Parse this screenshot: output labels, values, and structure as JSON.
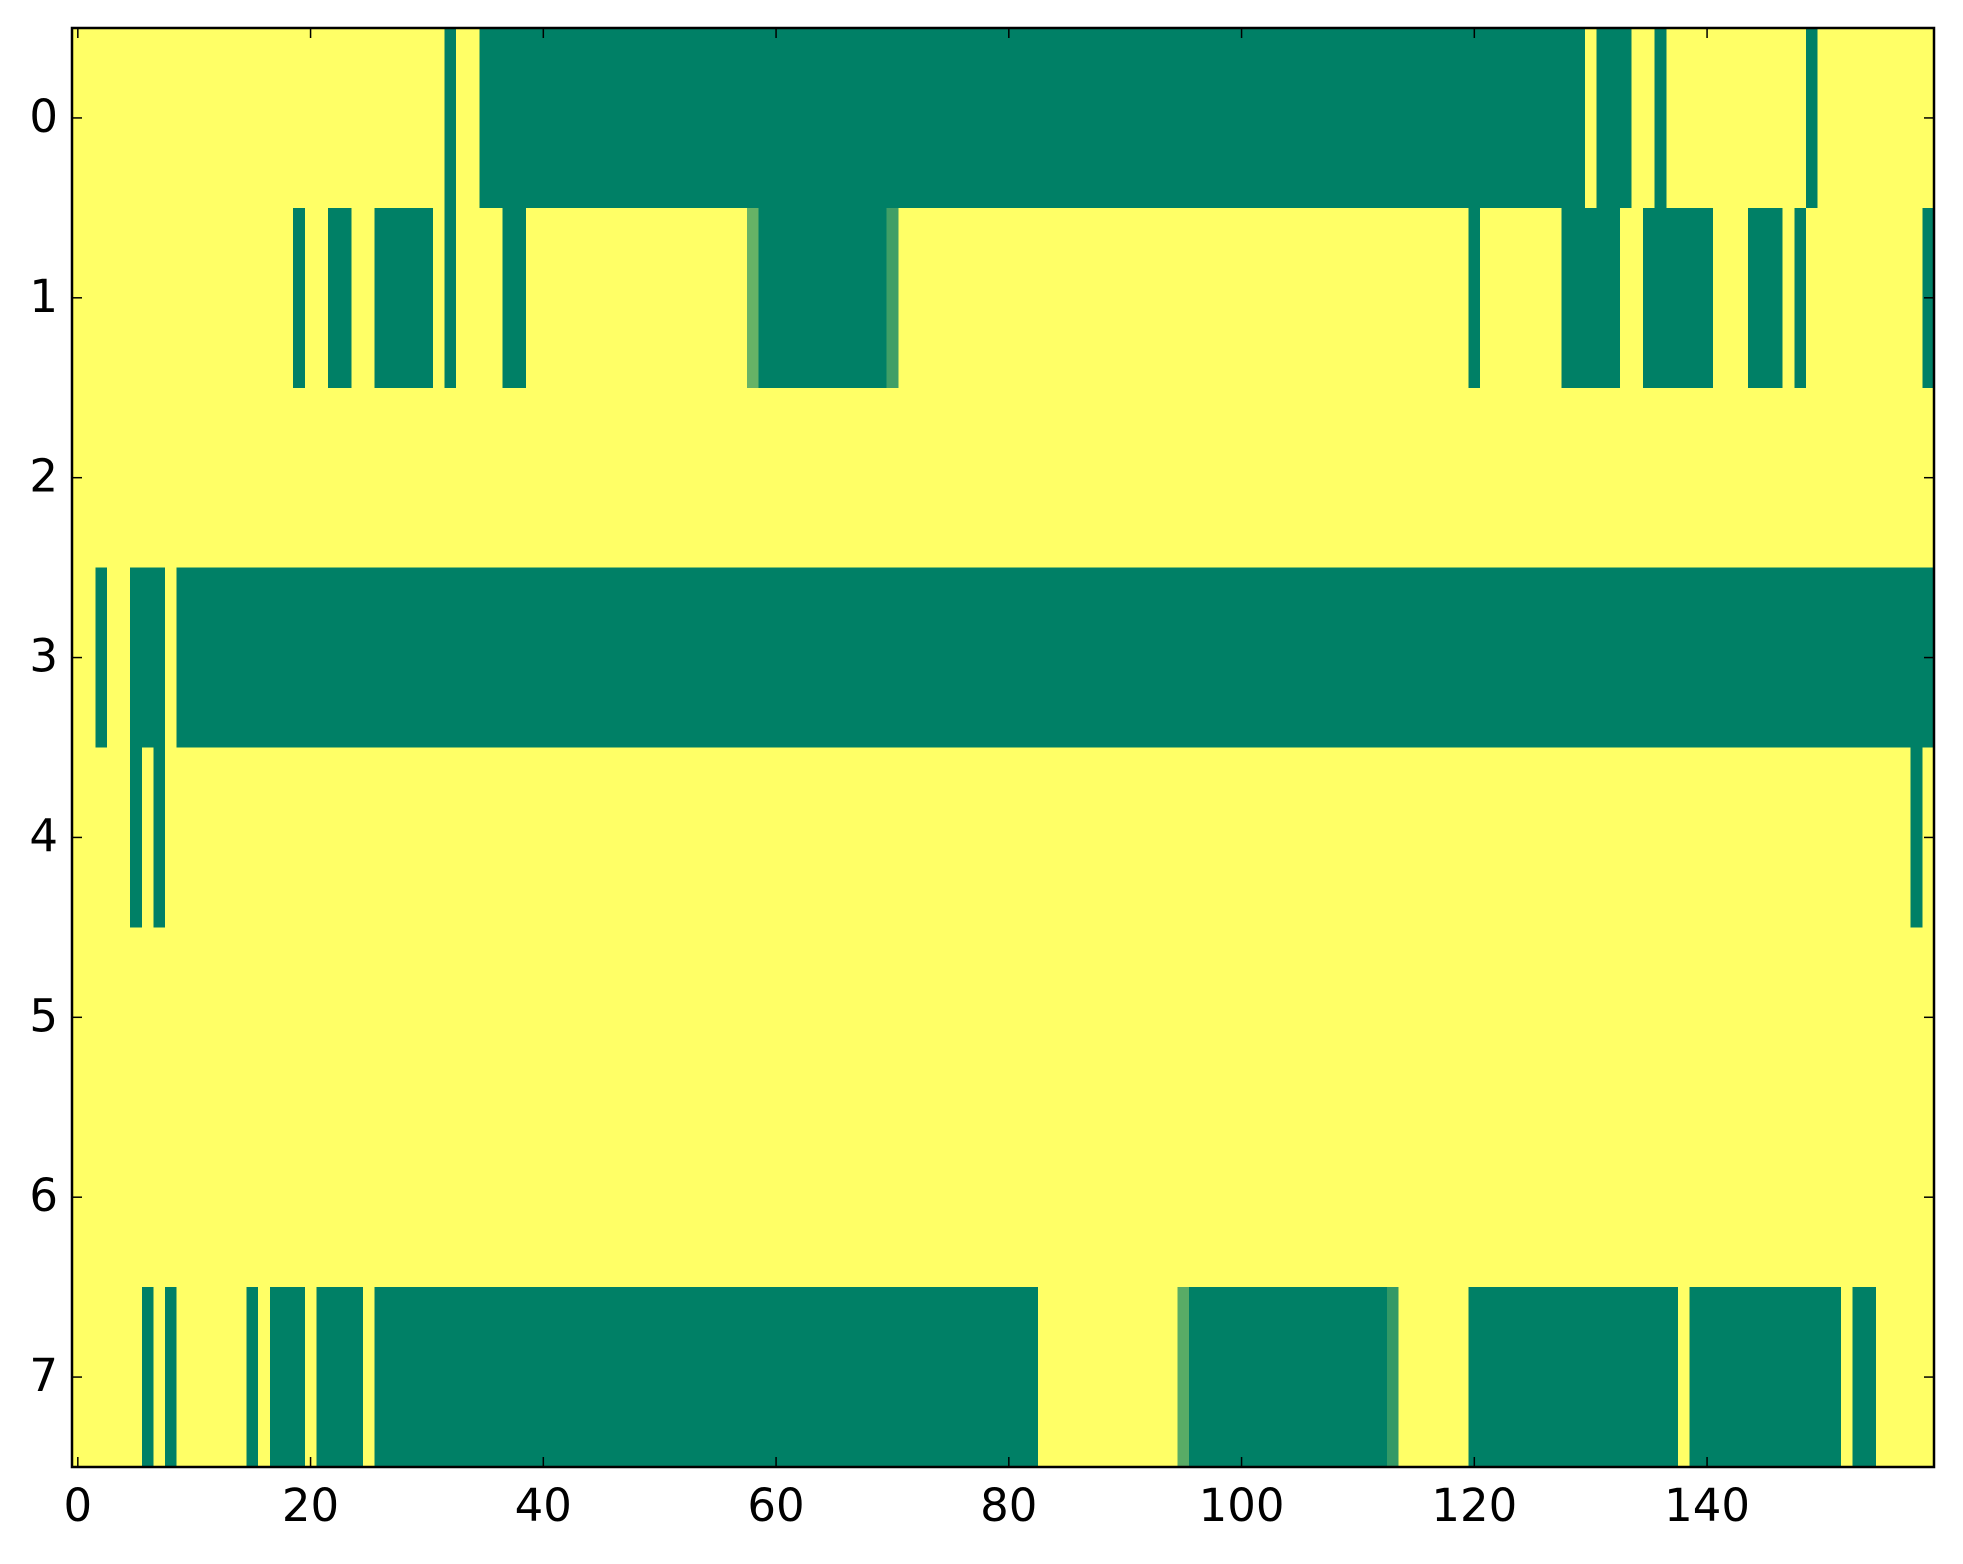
{
  "chart_data": {
    "type": "heatmap",
    "colormap": "summer",
    "xlim": [
      -0.5,
      159.5
    ],
    "ylim": [
      7.5,
      -0.5
    ],
    "xticks": [
      0,
      20,
      40,
      60,
      80,
      100,
      120,
      140
    ],
    "yticks": [
      0,
      1,
      2,
      3,
      4,
      5,
      6,
      7
    ],
    "values": [
      [
        1,
        1,
        1,
        1,
        1,
        1,
        1,
        1,
        1,
        1,
        1,
        1,
        1,
        1,
        1,
        1,
        1,
        1,
        1,
        1,
        1,
        1,
        1,
        1,
        1,
        1,
        1,
        1,
        1,
        1,
        1,
        1,
        0,
        1,
        1,
        0,
        0,
        0,
        0,
        0,
        0,
        0,
        0,
        0,
        0,
        0,
        0,
        0,
        0,
        0,
        0,
        0,
        0,
        0,
        0,
        0,
        0,
        0,
        0,
        0,
        0,
        0,
        0,
        0,
        0,
        0,
        0,
        0,
        0,
        0,
        0,
        0,
        0,
        0,
        0,
        0,
        0,
        0,
        0,
        0,
        0,
        0,
        0,
        0,
        0,
        0,
        0,
        0,
        0,
        0,
        0,
        0,
        0,
        0,
        0,
        0,
        0,
        0,
        0,
        0,
        0,
        0,
        0,
        0,
        0,
        0,
        0,
        0,
        0,
        0,
        0,
        0,
        0,
        0,
        0,
        0,
        0,
        0,
        0,
        0,
        0,
        0,
        0,
        0,
        0,
        0,
        0,
        0,
        0,
        0,
        1,
        0,
        0,
        0,
        1,
        1,
        0,
        1,
        1,
        1,
        1,
        1,
        1,
        1,
        1,
        1,
        1,
        1,
        1,
        0,
        1,
        1,
        1,
        1,
        1,
        1,
        1,
        1,
        1,
        1
      ],
      [
        1,
        1,
        1,
        1,
        1,
        1,
        1,
        1,
        1,
        1,
        1,
        1,
        1,
        1,
        1,
        1,
        1,
        1,
        1,
        0,
        1,
        1,
        0,
        0,
        1,
        1,
        0,
        0,
        0,
        0,
        0,
        1,
        0,
        1,
        1,
        1,
        1,
        0,
        0,
        1,
        1,
        1,
        1,
        1,
        1,
        1,
        1,
        1,
        1,
        1,
        1,
        1,
        1,
        1,
        1,
        1,
        1,
        1,
        0.4,
        0,
        0,
        0,
        0,
        0,
        0,
        0,
        0,
        0,
        0,
        0,
        0.25,
        1,
        1,
        1,
        1,
        1,
        1,
        1,
        1,
        1,
        1,
        1,
        1,
        1,
        1,
        1,
        1,
        1,
        1,
        1,
        1,
        1,
        1,
        1,
        1,
        1,
        1,
        1,
        1,
        1,
        1,
        1,
        1,
        1,
        1,
        1,
        1,
        1,
        1,
        1,
        1,
        1,
        1,
        1,
        1,
        1,
        1,
        1,
        1,
        1,
        0,
        1,
        1,
        1,
        1,
        1,
        1,
        1,
        0,
        0,
        0,
        0,
        0,
        1,
        1,
        0,
        0,
        0,
        0,
        0,
        0,
        1,
        1,
        1,
        0,
        0,
        0,
        1,
        0,
        1,
        1,
        1,
        1,
        1,
        1,
        1,
        1,
        1,
        1,
        0
      ],
      [
        1,
        1,
        1,
        1,
        1,
        1,
        1,
        1,
        1,
        1,
        1,
        1,
        1,
        1,
        1,
        1,
        1,
        1,
        1,
        1,
        1,
        1,
        1,
        1,
        1,
        1,
        1,
        1,
        1,
        1,
        1,
        1,
        1,
        1,
        1,
        1,
        1,
        1,
        1,
        1,
        1,
        1,
        1,
        1,
        1,
        1,
        1,
        1,
        1,
        1,
        1,
        1,
        1,
        1,
        1,
        1,
        1,
        1,
        1,
        1,
        1,
        1,
        1,
        1,
        1,
        1,
        1,
        1,
        1,
        1,
        1,
        1,
        1,
        1,
        1,
        1,
        1,
        1,
        1,
        1,
        1,
        1,
        1,
        1,
        1,
        1,
        1,
        1,
        1,
        1,
        1,
        1,
        1,
        1,
        1,
        1,
        1,
        1,
        1,
        1,
        1,
        1,
        1,
        1,
        1,
        1,
        1,
        1,
        1,
        1,
        1,
        1,
        1,
        1,
        1,
        1,
        1,
        1,
        1,
        1,
        1,
        1,
        1,
        1,
        1,
        1,
        1,
        1,
        1,
        1,
        1,
        1,
        1,
        1,
        1,
        1,
        1,
        1,
        1,
        1,
        1,
        1,
        1,
        1,
        1,
        1,
        1,
        1,
        1,
        1,
        1,
        1,
        1,
        1,
        1,
        1,
        1,
        1,
        1,
        1
      ],
      [
        1,
        1,
        0,
        1,
        1,
        0,
        0,
        0,
        1,
        0,
        0,
        0,
        0,
        0,
        0,
        0,
        0,
        0,
        0,
        0,
        0,
        0,
        0,
        0,
        0,
        0,
        0,
        0,
        0,
        0,
        0,
        0,
        0,
        0,
        0,
        0,
        0,
        0,
        0,
        0,
        0,
        0,
        0,
        0,
        0,
        0,
        0,
        0,
        0,
        0,
        0,
        0,
        0,
        0,
        0,
        0,
        0,
        0,
        0,
        0,
        0,
        0,
        0,
        0,
        0,
        0,
        0,
        0,
        0,
        0,
        0,
        0,
        0,
        0,
        0,
        0,
        0,
        0,
        0,
        0,
        0,
        0,
        0,
        0,
        0,
        0,
        0,
        0,
        0,
        0,
        0,
        0,
        0,
        0,
        0,
        0,
        0,
        0,
        0,
        0,
        0,
        0,
        0,
        0,
        0,
        0,
        0,
        0,
        0,
        0,
        0,
        0,
        0,
        0,
        0,
        0,
        0,
        0,
        0,
        0,
        0,
        0,
        0,
        0,
        0,
        0,
        0,
        0,
        0,
        0,
        0,
        0,
        0,
        0,
        0,
        0,
        0,
        0,
        0,
        0,
        0,
        0,
        0,
        0,
        0,
        0,
        0,
        0,
        0,
        0,
        0,
        0,
        0,
        0,
        0,
        0,
        0,
        0,
        0,
        0
      ],
      [
        1,
        1,
        1,
        1,
        1,
        0,
        1,
        0,
        1,
        1,
        1,
        1,
        1,
        1,
        1,
        1,
        1,
        1,
        1,
        1,
        1,
        1,
        1,
        1,
        1,
        1,
        1,
        1,
        1,
        1,
        1,
        1,
        1,
        1,
        1,
        1,
        1,
        1,
        1,
        1,
        1,
        1,
        1,
        1,
        1,
        1,
        1,
        1,
        1,
        1,
        1,
        1,
        1,
        1,
        1,
        1,
        1,
        1,
        1,
        1,
        1,
        1,
        1,
        1,
        1,
        1,
        1,
        1,
        1,
        1,
        1,
        1,
        1,
        1,
        1,
        1,
        1,
        1,
        1,
        1,
        1,
        1,
        1,
        1,
        1,
        1,
        1,
        1,
        1,
        1,
        1,
        1,
        1,
        1,
        1,
        1,
        1,
        1,
        1,
        1,
        1,
        1,
        1,
        1,
        1,
        1,
        1,
        1,
        1,
        1,
        1,
        1,
        1,
        1,
        1,
        1,
        1,
        1,
        1,
        1,
        1,
        1,
        1,
        1,
        1,
        1,
        1,
        1,
        1,
        1,
        1,
        1,
        1,
        1,
        1,
        1,
        1,
        1,
        1,
        1,
        1,
        1,
        1,
        1,
        1,
        1,
        1,
        1,
        1,
        1,
        1,
        1,
        1,
        1,
        1,
        1,
        1,
        1,
        0,
        1
      ],
      [
        1,
        1,
        1,
        1,
        1,
        1,
        1,
        1,
        1,
        1,
        1,
        1,
        1,
        1,
        1,
        1,
        1,
        1,
        1,
        1,
        1,
        1,
        1,
        1,
        1,
        1,
        1,
        1,
        1,
        1,
        1,
        1,
        1,
        1,
        1,
        1,
        1,
        1,
        1,
        1,
        1,
        1,
        1,
        1,
        1,
        1,
        1,
        1,
        1,
        1,
        1,
        1,
        1,
        1,
        1,
        1,
        1,
        1,
        1,
        1,
        1,
        1,
        1,
        1,
        1,
        1,
        1,
        1,
        1,
        1,
        1,
        1,
        1,
        1,
        1,
        1,
        1,
        1,
        1,
        1,
        1,
        1,
        1,
        1,
        1,
        1,
        1,
        1,
        1,
        1,
        1,
        1,
        1,
        1,
        1,
        1,
        1,
        1,
        1,
        1,
        1,
        1,
        1,
        1,
        1,
        1,
        1,
        1,
        1,
        1,
        1,
        1,
        1,
        1,
        1,
        1,
        1,
        1,
        1,
        1,
        1,
        1,
        1,
        1,
        1,
        1,
        1,
        1,
        1,
        1,
        1,
        1,
        1,
        1,
        1,
        1,
        1,
        1,
        1,
        1,
        1,
        1,
        1,
        1,
        1,
        1,
        1,
        1,
        1,
        1,
        1,
        1,
        1,
        1,
        1,
        1,
        1,
        1,
        1,
        1
      ],
      [
        1,
        1,
        1,
        1,
        1,
        1,
        1,
        1,
        1,
        1,
        1,
        1,
        1,
        1,
        1,
        1,
        1,
        1,
        1,
        1,
        1,
        1,
        1,
        1,
        1,
        1,
        1,
        1,
        1,
        1,
        1,
        1,
        1,
        1,
        1,
        1,
        1,
        1,
        1,
        1,
        1,
        1,
        1,
        1,
        1,
        1,
        1,
        1,
        1,
        1,
        1,
        1,
        1,
        1,
        1,
        1,
        1,
        1,
        1,
        1,
        1,
        1,
        1,
        1,
        1,
        1,
        1,
        1,
        1,
        1,
        1,
        1,
        1,
        1,
        1,
        1,
        1,
        1,
        1,
        1,
        1,
        1,
        1,
        1,
        1,
        1,
        1,
        1,
        1,
        1,
        1,
        1,
        1,
        1,
        1,
        1,
        1,
        1,
        1,
        1,
        1,
        1,
        1,
        1,
        1,
        1,
        1,
        1,
        1,
        1,
        1,
        1,
        1,
        1,
        1,
        1,
        1,
        1,
        1,
        1,
        1,
        1,
        1,
        1,
        1,
        1,
        1,
        1,
        1,
        1,
        1,
        1,
        1,
        1,
        1,
        1,
        1,
        1,
        1,
        1,
        1,
        1,
        1,
        1,
        1,
        1,
        1,
        1,
        1,
        1,
        1,
        1,
        1,
        1,
        1,
        1,
        1,
        1,
        1,
        1
      ],
      [
        1,
        1,
        1,
        1,
        1,
        1,
        0,
        1,
        0,
        1,
        1,
        1,
        1,
        1,
        1,
        0,
        1,
        0,
        0,
        0,
        1,
        0,
        0,
        0,
        0,
        1,
        0,
        0,
        0,
        0,
        0,
        0,
        0,
        0,
        0,
        0,
        0,
        0,
        0,
        0,
        0,
        0,
        0,
        0,
        0,
        0,
        0,
        0,
        0,
        0,
        0,
        0,
        0,
        0,
        0,
        0,
        0,
        0,
        0,
        0,
        0,
        0,
        0,
        0,
        0,
        0,
        0,
        0,
        0,
        0,
        0,
        0,
        0,
        0,
        0,
        0,
        0,
        0,
        0,
        0,
        0,
        0,
        0,
        1,
        1,
        1,
        1,
        1,
        1,
        1,
        1,
        1,
        1,
        1,
        1,
        0.35,
        0,
        0,
        0,
        0,
        0,
        0,
        0,
        0,
        0,
        0,
        0,
        0,
        0,
        0,
        0,
        0,
        0,
        0.2,
        1,
        1,
        1,
        1,
        1,
        1,
        0,
        0,
        0,
        0,
        0,
        0,
        0,
        0,
        0,
        0,
        0,
        0,
        0,
        0,
        0,
        0,
        0,
        0,
        1,
        0,
        0,
        0,
        0,
        0,
        0,
        0,
        0,
        0,
        0,
        0,
        0,
        0,
        1,
        0,
        0,
        1,
        1,
        1,
        1,
        1
      ]
    ]
  }
}
